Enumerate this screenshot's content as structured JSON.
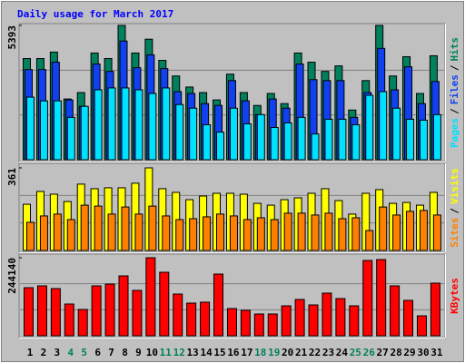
{
  "title": "Daily usage for March 2017",
  "categories": [
    "1",
    "2",
    "3",
    "4",
    "5",
    "6",
    "7",
    "8",
    "9",
    "10",
    "11",
    "12",
    "13",
    "14",
    "15",
    "16",
    "17",
    "18",
    "19",
    "20",
    "21",
    "22",
    "23",
    "24",
    "25",
    "26",
    "27",
    "28",
    "29",
    "30",
    "31"
  ],
  "category_colors": [
    "#000000",
    "#000000",
    "#000000",
    "#00805c",
    "#00805c",
    "#000000",
    "#000000",
    "#000000",
    "#000000",
    "#000000",
    "#00805c",
    "#00805c",
    "#000000",
    "#000000",
    "#000000",
    "#000000",
    "#000000",
    "#00805c",
    "#00805c",
    "#000000",
    "#000000",
    "#000000",
    "#000000",
    "#000000",
    "#00805c",
    "#00805c",
    "#000000",
    "#000000",
    "#000000",
    "#000000",
    "#000000"
  ],
  "separator": "/",
  "chart_data": [
    {
      "type": "bar",
      "ylim": [
        0,
        5393
      ],
      "yticks": [
        5393
      ],
      "series": [
        {
          "name": "Hits",
          "color": "#00805c",
          "values": [
            4063,
            4063,
            4322,
            2438,
            2697,
            4285,
            4063,
            5393,
            4285,
            4839,
            3989,
            3361,
            2918,
            2697,
            2401,
            3435,
            2697,
            2179,
            2660,
            2253,
            4285,
            3915,
            3546,
            3768,
            1995,
            3177,
            5393,
            3361,
            4137,
            2660,
            4174
          ]
        },
        {
          "name": "Files",
          "color": "#1040f0",
          "values": [
            3620,
            3620,
            3916,
            2401,
            2143,
            3842,
            3546,
            4765,
            3694,
            4211,
            3657,
            2734,
            2660,
            2253,
            2180,
            3177,
            2364,
            1810,
            2438,
            2069,
            3842,
            3214,
            3177,
            3177,
            1699,
            2697,
            4470,
            2807,
            3731,
            2253,
            3140
          ]
        },
        {
          "name": "Pages",
          "color": "#00e0ff",
          "values": [
            2512,
            2364,
            2364,
            1699,
            2143,
            2807,
            2881,
            2881,
            2807,
            2660,
            2881,
            2216,
            2069,
            1404,
            1108,
            2069,
            1441,
            1810,
            1293,
            1478,
            1699,
            1034,
            1625,
            1625,
            1404,
            2586,
            2734,
            2069,
            1625,
            1588,
            1810
          ]
        }
      ]
    },
    {
      "type": "bar",
      "ylim": [
        0,
        361
      ],
      "yticks": [
        361
      ],
      "series": [
        {
          "name": "Visits",
          "color": "#ffff00",
          "values": [
            202,
            258,
            246,
            214,
            290,
            270,
            274,
            274,
            294,
            361,
            270,
            254,
            222,
            238,
            250,
            250,
            246,
            206,
            198,
            222,
            230,
            250,
            270,
            218,
            159,
            250,
            266,
            206,
            210,
            198,
            254
          ]
        },
        {
          "name": "Sites",
          "color": "#ff8000",
          "values": [
            123,
            151,
            159,
            135,
            198,
            194,
            159,
            190,
            159,
            194,
            151,
            135,
            139,
            147,
            159,
            151,
            135,
            143,
            135,
            163,
            163,
            155,
            163,
            139,
            143,
            87,
            190,
            155,
            171,
            175,
            155
          ]
        }
      ]
    },
    {
      "type": "bar",
      "ylim": [
        0,
        244140
      ],
      "yticks": [
        244140
      ],
      "series": [
        {
          "name": "KBytes",
          "color": "#ff0000",
          "values": [
            150458,
            156135,
            147617,
            99357,
            82325,
            156135,
            161812,
            187360,
            141940,
            244140,
            198716,
            130585,
            102197,
            105036,
            193038,
            85164,
            79486,
            68131,
            68131,
            93680,
            113552,
            96519,
            133424,
            116391,
            93680,
            235620,
            238459,
            156135,
            110713,
            62453,
            164650
          ]
        }
      ]
    }
  ]
}
